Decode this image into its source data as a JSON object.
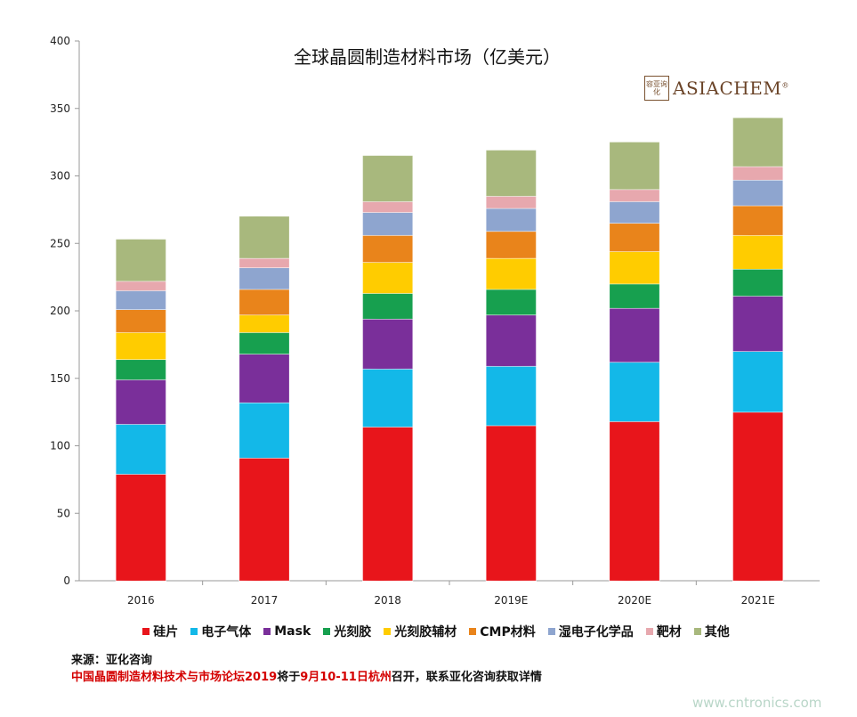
{
  "chart_data": {
    "type": "bar",
    "stacked": true,
    "title": "全球晶圆制造材料市场（亿美元）",
    "categories": [
      "2016",
      "2017",
      "2018",
      "2019E",
      "2020E",
      "2021E"
    ],
    "ylim": [
      0,
      400
    ],
    "yticks": [
      0,
      50,
      100,
      150,
      200,
      250,
      300,
      350,
      400
    ],
    "grid": false,
    "legend_position": "bottom",
    "series": [
      {
        "name": "硅片",
        "color": "#e8151b",
        "values": [
          79,
          91,
          114,
          115,
          118,
          125
        ]
      },
      {
        "name": "电子气体",
        "color": "#13b8e8",
        "values": [
          37,
          41,
          43,
          44,
          44,
          45
        ]
      },
      {
        "name": "Mask",
        "color": "#7a2f9a",
        "values": [
          33,
          36,
          37,
          38,
          40,
          41
        ]
      },
      {
        "name": "光刻胶",
        "color": "#17a04f",
        "values": [
          15,
          16,
          19,
          19,
          18,
          20
        ]
      },
      {
        "name": "光刻胶辅材",
        "color": "#ffcc00",
        "values": [
          20,
          13,
          23,
          23,
          24,
          25
        ]
      },
      {
        "name": "CMP材料",
        "color": "#e9841b",
        "values": [
          17,
          19,
          20,
          20,
          21,
          22
        ]
      },
      {
        "name": "湿电子化学品",
        "color": "#8ea5cf",
        "values": [
          14,
          16,
          17,
          17,
          16,
          19
        ]
      },
      {
        "name": "靶材",
        "color": "#e7a8ae",
        "values": [
          7,
          7,
          8,
          9,
          9,
          10
        ]
      },
      {
        "name": "其他",
        "color": "#a8b87d",
        "values": [
          31,
          31,
          34,
          34,
          35,
          36
        ]
      }
    ]
  },
  "logo": {
    "seal_text": "容亚询化",
    "brand": "ASIACHEM",
    "mark": "®"
  },
  "footer": {
    "source": "来源：亚化咨询",
    "notice_red_1": "中国晶圆制造材料技术与市场论坛2019",
    "notice_black_1": "将于",
    "notice_red_2": "9月10-11日杭州",
    "notice_black_2": "召开，联系亚化咨询获取详情"
  },
  "watermark": "www.cntronics.com"
}
